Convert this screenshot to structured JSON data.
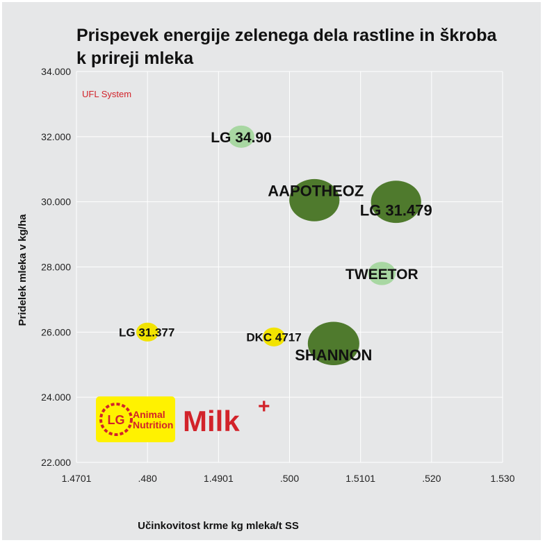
{
  "chart_data": {
    "type": "scatter",
    "title_line1": "Prispevek energije zelenega dela rastline in škroba",
    "title_line2": "k prireji mleka",
    "subtitle": "UFL System",
    "xlabel": "Učinkovitost krme kg mleka/t SS",
    "ylabel": "Pridelek mleka v kg/ha",
    "xlim": [
      1.47,
      1.53
    ],
    "ylim": [
      22000,
      34000
    ],
    "x_tick_labels": [
      "1.4701",
      ".480",
      "1.4901",
      ".500",
      "1.5101",
      ".520",
      "1.530"
    ],
    "y_tick_labels": [
      "22.000",
      "24.000",
      "26.000",
      "28.000",
      "30.000",
      "32.000",
      "34.000"
    ],
    "grid": true,
    "points": [
      {
        "label": "LG 34.90",
        "x": 1.4932,
        "y": 32000,
        "size": 1.0,
        "color": "#a8d7a2"
      },
      {
        "label": "AAPOTHEOZ",
        "x": 1.5035,
        "y": 30050,
        "size": 1.9,
        "color": "#4f7a2d"
      },
      {
        "label": "LG 31.479",
        "x": 1.515,
        "y": 30000,
        "size": 1.9,
        "color": "#4f7a2d"
      },
      {
        "label": "TWEETOR",
        "x": 1.513,
        "y": 27800,
        "size": 1.05,
        "color": "#a8d7a2"
      },
      {
        "label": "LG 31.377",
        "x": 1.48,
        "y": 26000,
        "size": 0.85,
        "color": "#f2e300"
      },
      {
        "label": "DKC 4717",
        "x": 1.4978,
        "y": 25850,
        "size": 0.85,
        "color": "#f2e300"
      },
      {
        "label": "SHANNON",
        "x": 1.5062,
        "y": 25650,
        "size": 1.95,
        "color": "#4f7a2d"
      }
    ]
  },
  "logo": {
    "lg_mark": "LG",
    "line1": "Animal",
    "line2": "Nutrition",
    "product_name": "Milk",
    "plus": "+",
    "yellow": "#fff200",
    "red": "#d2232a"
  }
}
